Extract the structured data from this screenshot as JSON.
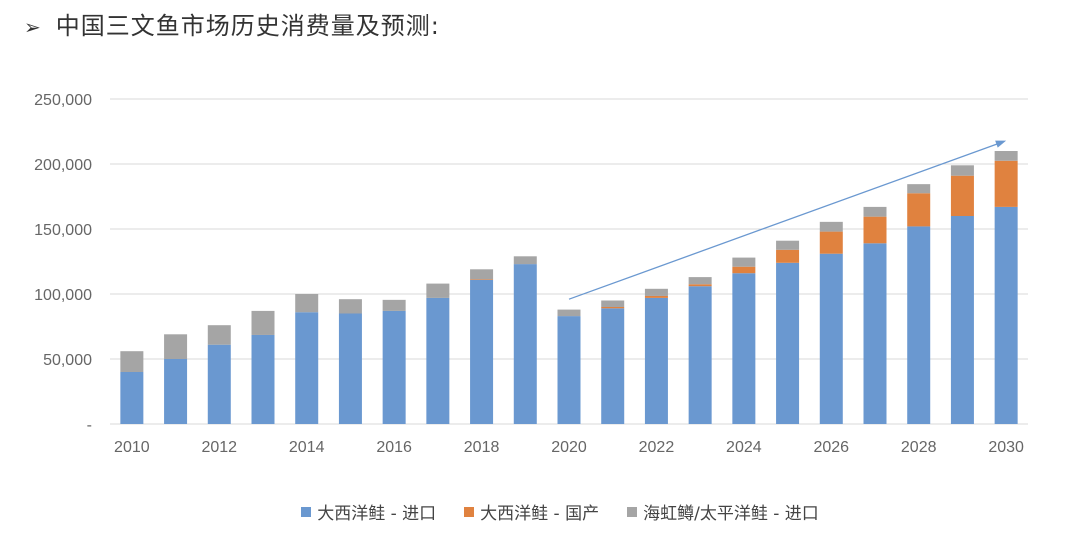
{
  "title": "中国三文鱼市场历史消费量及预测:",
  "title_marker": "➢",
  "chart_data": {
    "type": "bar",
    "stacked": true,
    "categories": [
      "2010",
      "2011",
      "2012",
      "2013",
      "2014",
      "2015",
      "2016",
      "2017",
      "2018",
      "2019",
      "2020",
      "2021",
      "2022",
      "2023",
      "2024",
      "2025",
      "2026",
      "2027",
      "2028",
      "2029",
      "2030"
    ],
    "x_tick_labels": [
      "2010",
      "2012",
      "2014",
      "2016",
      "2018",
      "2020",
      "2022",
      "2024",
      "2026",
      "2028",
      "2030"
    ],
    "y_tick_labels": [
      "-",
      "50,000",
      "100,000",
      "150,000",
      "200,000",
      "250,000"
    ],
    "ylim": [
      0,
      250000
    ],
    "grid": true,
    "legend_position": "bottom",
    "trend_arrow": {
      "from": [
        "2020",
        96000
      ],
      "to": [
        "2030",
        218000
      ]
    },
    "series": [
      {
        "name": "大西洋鲑 - 进口",
        "color": "#6a98d0",
        "values": [
          40000,
          50000,
          61000,
          68500,
          86000,
          85000,
          87000,
          97000,
          111000,
          123000,
          83000,
          89000,
          97000,
          106000,
          116000,
          124000,
          131000,
          139000,
          152000,
          160000,
          167000
        ]
      },
      {
        "name": "大西洋鲑 - 国产",
        "color": "#e0823f",
        "values": [
          0,
          0,
          0,
          0,
          0,
          0,
          0,
          0,
          500,
          0,
          0,
          1000,
          1500,
          1500,
          5000,
          10000,
          17000,
          20500,
          25500,
          31000,
          35500
        ]
      },
      {
        "name": "海虹鳟/太平洋鲑 - 进口",
        "color": "#a5a5a5",
        "values": [
          16000,
          19000,
          15000,
          18500,
          14000,
          11000,
          8500,
          11000,
          7500,
          6000,
          5000,
          5000,
          5500,
          5500,
          7000,
          7000,
          7500,
          7500,
          7000,
          8000,
          7500
        ]
      }
    ]
  }
}
